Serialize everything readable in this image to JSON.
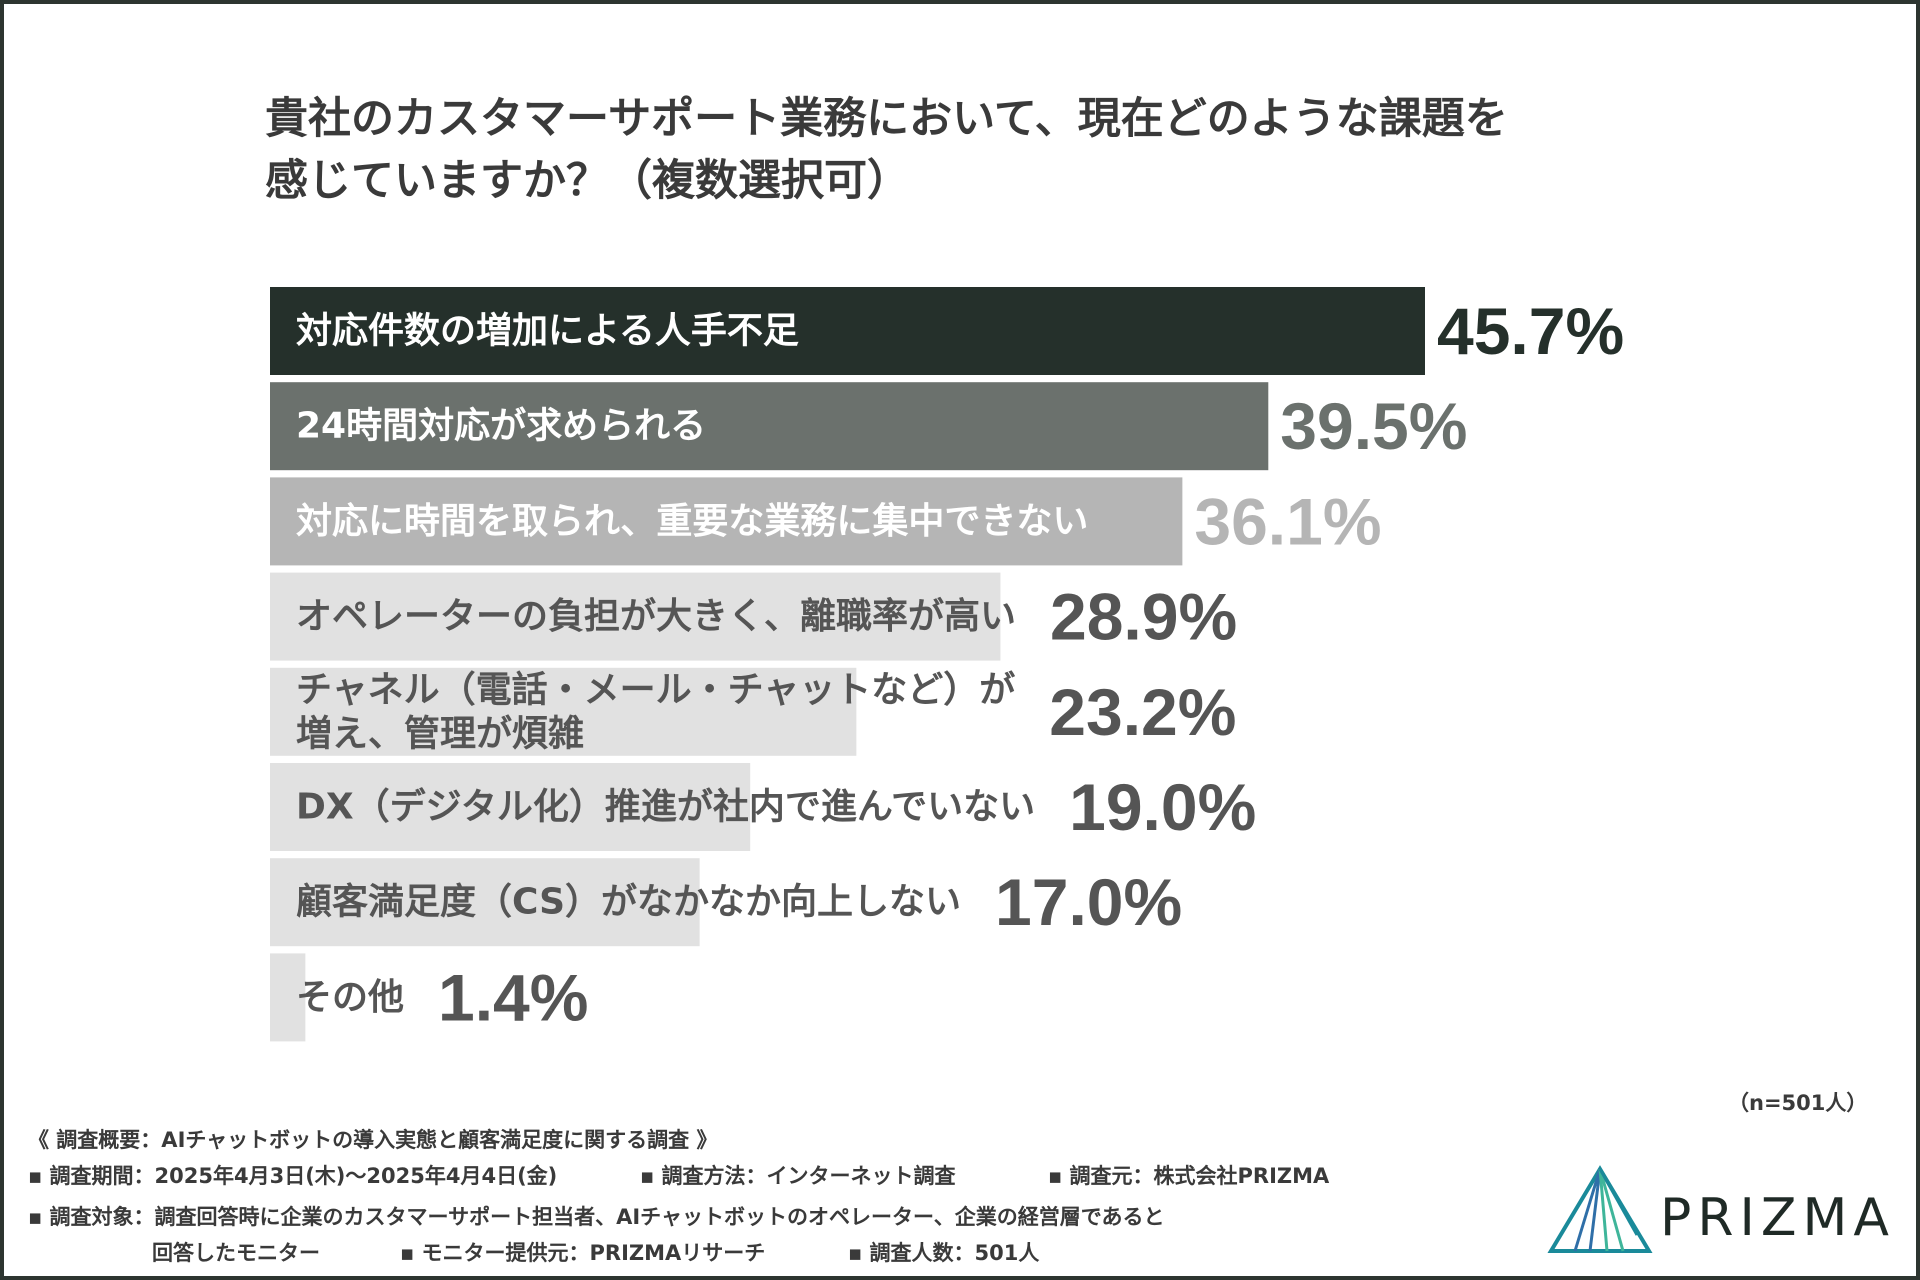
{
  "chart_data": {
    "type": "bar",
    "orientation": "horizontal",
    "title_lines": [
      "貴社のカスタマーサポート業務において、現在どのような課題を",
      "感じていますか？（複数選択可）"
    ],
    "categories": [
      "対応件数の増加による人手不足",
      "24時間対応が求められる",
      "対応に時間を取られ、重要な業務に集中できない",
      "オペレーターの負担が大きく、離職率が高い",
      "チャネル（電話・メール・チャットなど）が増え、管理が煩雑",
      "DX（デジタル化）推進が社内で進んでいない",
      "顧客満足度（CS）がなかなか向上しない",
      "その他"
    ],
    "category_lines": [
      [
        "対応件数の増加による人手不足"
      ],
      [
        "24時間対応が求められる"
      ],
      [
        "対応に時間を取られ、重要な業務に集中できない"
      ],
      [
        "オペレーターの負担が大きく、離職率が高い"
      ],
      [
        "チャネル（電話・メール・チャットなど）が",
        "増え、管理が煩雑"
      ],
      [
        "DX（デジタル化）推進が社内で進んでいない"
      ],
      [
        "顧客満足度（CS）がなかなか向上しない"
      ],
      [
        "その他"
      ]
    ],
    "values": [
      45.7,
      39.5,
      36.1,
      28.9,
      23.2,
      19.0,
      17.0,
      1.4
    ],
    "value_labels": [
      "45.7%",
      "39.5%",
      "36.1%",
      "28.9%",
      "23.2%",
      "19.0%",
      "17.0%",
      "1.4%"
    ],
    "unit": "%",
    "bar_colors": [
      "#25302b",
      "#6b716d",
      "#b5b5b5",
      "#e1e1e1",
      "#e1e1e1",
      "#e1e1e1",
      "#e1e1e1",
      "#e1e1e1"
    ],
    "label_colors": [
      "#ffffff",
      "#ffffff",
      "#ffffff",
      "#555555",
      "#555555",
      "#555555",
      "#555555",
      "#555555"
    ],
    "value_colors": [
      "#25302b",
      "#6b716d",
      "#b5b5b5",
      "#555555",
      "#555555",
      "#555555",
      "#555555",
      "#555555"
    ],
    "xlim": [
      0,
      45.7
    ],
    "grid": false,
    "legend": "none"
  },
  "sample_size": "（n=501人）",
  "notes": [
    "《 調査概要：AIチャットボットの導入実態と顧客満足度に関する調査 》",
    "▪ 調査期間：2025年4月3日(木)〜2025年4月4日(金)",
    "▪ 調査方法：インターネット調査",
    "▪ 調査元：株式会社PRIZMA",
    "▪ 調査対象：調査回答時に企業のカスタマーサポート担当者、AIチャットボットのオペレーター、企業の経営層であると",
    "回答したモニター",
    "▪ モニター提供元：PRIZMAリサーチ",
    "▪ 調査人数：501人"
  ],
  "brand": {
    "name": "PRIZMA",
    "logo_icon": "prism-triangle-icon",
    "colors": [
      "#1a8a9a",
      "#2f6fa8",
      "#3fb59a"
    ]
  }
}
